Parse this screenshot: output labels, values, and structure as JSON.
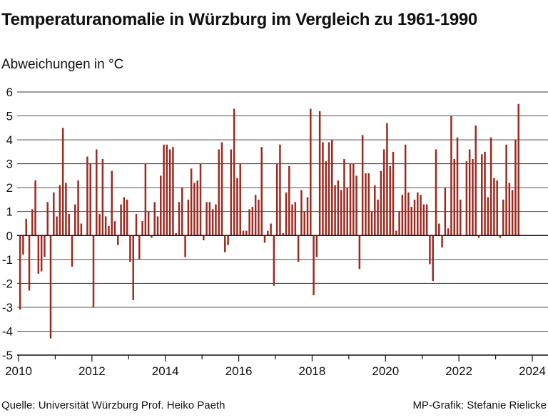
{
  "header": {
    "title": "Temperaturanomalie in Würzburg im Vergleich zu 1961-1990",
    "ylabel": "Abweichungen in °C"
  },
  "footer": {
    "source": "Quelle: Universität Würzburg Prof. Heiko Paeth",
    "credit": "MP-Grafik: Stefanie Rielicke"
  },
  "chart_data": {
    "type": "bar",
    "title": "Temperaturanomalie in Würzburg im Vergleich zu 1961-1990",
    "ylabel": "Abweichungen in °C",
    "xlabel": "",
    "granularity": "monthly",
    "start": "2010-01",
    "ylim": [
      -5,
      6
    ],
    "yticks": [
      6,
      5,
      4,
      3,
      2,
      1,
      0,
      -1,
      -2,
      -3,
      -4,
      -5
    ],
    "xticks": [
      "2010",
      "2012",
      "2014",
      "2016",
      "2018",
      "2020",
      "2022",
      "2024"
    ],
    "grid": true,
    "bar_color": "#9b2a20",
    "series": [
      {
        "values": [
          -3.1,
          -0.8,
          0.7,
          -2.3,
          1.1,
          2.3,
          -1.6,
          -1.5,
          -0.9,
          1.4,
          -4.3,
          1.8,
          0.8,
          2.1,
          4.5,
          2.2,
          0.9,
          -1.3,
          1.3,
          2.3,
          0.5,
          0.0,
          3.3,
          3.0,
          -3.0,
          3.6,
          0.9,
          3.2,
          0.8,
          0.4,
          2.7,
          0.6,
          -0.4,
          1.3,
          1.6,
          1.5,
          -1.1,
          -2.7,
          0.9,
          -1.0,
          0.6,
          3.0,
          1.0,
          -0.1,
          1.4,
          0.8,
          2.5,
          3.8,
          3.8,
          3.6,
          3.7,
          0.1,
          1.4,
          2.0,
          -0.9,
          1.5,
          2.8,
          2.2,
          2.3,
          3.0,
          -0.2,
          1.4,
          1.4,
          1.1,
          1.3,
          3.6,
          3.9,
          -0.7,
          -0.4,
          3.6,
          5.3,
          2.4,
          3.0,
          0.2,
          0.2,
          1.1,
          1.2,
          1.7,
          1.5,
          3.7,
          -0.3,
          0.2,
          0.5,
          -2.1,
          3.0,
          3.8,
          0.1,
          1.8,
          2.9,
          1.3,
          1.4,
          -1.1,
          1.9,
          1.0,
          1.6,
          5.3,
          -2.5,
          -0.9,
          5.2,
          3.9,
          3.1,
          3.9,
          4.0,
          2.1,
          2.3,
          1.9,
          3.2,
          2.0,
          3.0,
          3.0,
          2.5,
          -1.4,
          4.2,
          2.6,
          2.6,
          1.0,
          2.1,
          1.5,
          2.7,
          3.6,
          4.7,
          2.9,
          3.5,
          0.2,
          1.0,
          1.7,
          3.8,
          1.8,
          1.2,
          1.5,
          1.8,
          1.7,
          1.3,
          1.3,
          -1.2,
          -1.9,
          3.6,
          0.5,
          -0.5,
          2.0,
          0.3,
          5.0,
          3.2,
          4.1,
          1.5,
          0.0,
          3.1,
          3.6,
          3.2,
          4.6,
          -0.1,
          3.4,
          3.5,
          1.6,
          4.1,
          2.4,
          2.3,
          -0.1,
          1.5,
          3.8,
          2.2,
          1.9,
          4.0,
          5.5
        ]
      }
    ]
  }
}
